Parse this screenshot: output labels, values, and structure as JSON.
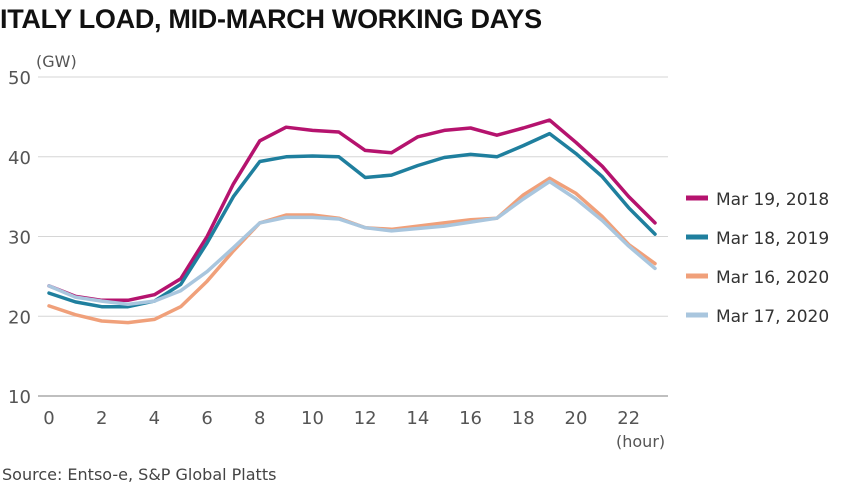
{
  "chart_data": {
    "type": "line",
    "title": "ITALY LOAD, MID-MARCH WORKING DAYS",
    "ylabel": "(GW)",
    "xlabel": "(hour)",
    "ylim": [
      10,
      50
    ],
    "xlim": [
      0,
      23
    ],
    "yticks": [
      10,
      20,
      30,
      40,
      50
    ],
    "xticks": [
      0,
      2,
      4,
      6,
      8,
      10,
      12,
      14,
      16,
      18,
      20,
      22
    ],
    "grid": "horizontal",
    "legend_position": "right",
    "x": [
      0,
      1,
      2,
      3,
      4,
      5,
      6,
      7,
      8,
      9,
      10,
      11,
      12,
      13,
      14,
      15,
      16,
      17,
      18,
      19,
      20,
      21,
      22,
      23
    ],
    "series": [
      {
        "name": "Mar 19, 2018",
        "color": "#b5136e",
        "values": [
          23.8,
          22.5,
          22.0,
          22.0,
          22.7,
          24.7,
          30.0,
          36.6,
          42.0,
          43.7,
          43.3,
          43.1,
          40.8,
          40.5,
          42.5,
          43.3,
          43.6,
          42.7,
          43.6,
          44.6,
          41.8,
          38.8,
          35.0,
          31.7
        ]
      },
      {
        "name": "Mar 18, 2019",
        "color": "#1f7f9e",
        "values": [
          22.9,
          21.8,
          21.2,
          21.2,
          21.9,
          24.0,
          29.2,
          35.0,
          39.4,
          40.0,
          40.1,
          40.0,
          37.4,
          37.7,
          38.9,
          39.9,
          40.3,
          40.0,
          41.4,
          42.9,
          40.4,
          37.5,
          33.6,
          30.3
        ]
      },
      {
        "name": "Mar 16, 2020",
        "color": "#f0a07a",
        "values": [
          21.3,
          20.2,
          19.4,
          19.2,
          19.6,
          21.2,
          24.4,
          28.2,
          31.7,
          32.7,
          32.7,
          32.3,
          31.1,
          30.9,
          31.3,
          31.7,
          32.1,
          32.3,
          35.2,
          37.3,
          35.4,
          32.5,
          29.0,
          26.6
        ]
      },
      {
        "name": "Mar 17, 2020",
        "color": "#a9c6de",
        "values": [
          23.8,
          22.4,
          21.9,
          21.5,
          21.9,
          23.2,
          25.6,
          28.6,
          31.7,
          32.4,
          32.4,
          32.2,
          31.1,
          30.7,
          31.0,
          31.3,
          31.8,
          32.3,
          34.7,
          36.9,
          34.7,
          32.0,
          28.8,
          26.0
        ]
      }
    ]
  },
  "source_text": "Source: Entso-e, S&P Global Platts"
}
